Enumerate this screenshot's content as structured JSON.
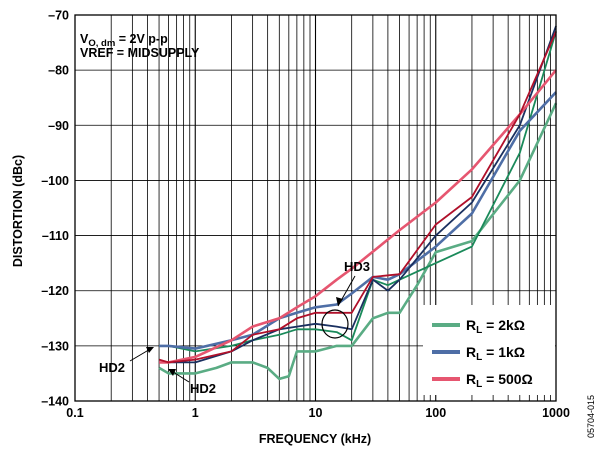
{
  "chart_data": {
    "type": "line",
    "xlabel": "FREQUENCY (kHz)",
    "ylabel": "DISTORTION (dBc)",
    "xscale": "log",
    "xlim": [
      0.1,
      1000
    ],
    "ylim": [
      -140,
      -70
    ],
    "x_ticks": [
      "0.1",
      "1",
      "10",
      "100",
      "1000"
    ],
    "y_ticks": [
      "–70",
      "–80",
      "–90",
      "–100",
      "–110",
      "–120",
      "–130",
      "–140"
    ],
    "grid": true,
    "conditions": {
      "line1_main": "V",
      "line1_sub": "O, dm",
      "line1_rest": " = 2V p-p",
      "line2": "VREF = MIDSUPPLY"
    },
    "annotations": [
      "HD3",
      "HD2",
      "HD2"
    ],
    "legend": {
      "placement": "bottom-right",
      "items": [
        {
          "prefix": "R",
          "sub": "L",
          "text": " = 2kΩ",
          "color": "#5aac84"
        },
        {
          "prefix": "R",
          "sub": "L",
          "text": " = 1kΩ",
          "color": "#4e6ea6"
        },
        {
          "prefix": "R",
          "sub": "L",
          "text": " = 500Ω",
          "color": "#e65670"
        }
      ]
    },
    "figure_code": "05704-015",
    "series": [
      {
        "name": "RL = 2kΩ HD2",
        "color": "#5aac84",
        "x": [
          0.5,
          0.6,
          1,
          1.5,
          2,
          3,
          4,
          5,
          6,
          7,
          10,
          15,
          20,
          30,
          40,
          50,
          70,
          100,
          200,
          500,
          1000
        ],
        "y": [
          -134,
          -135,
          -135,
          -134,
          -133,
          -133,
          -134,
          -136,
          -135.5,
          -131,
          -131,
          -130,
          -130,
          -125,
          -124,
          -124,
          -119,
          -113,
          -111,
          -100,
          -86
        ]
      },
      {
        "name": "RL = 2kΩ HD3",
        "color": "#1a8a5a",
        "x": [
          0.5,
          0.6,
          1,
          2,
          3,
          5,
          7,
          10,
          15,
          20,
          30,
          40,
          50,
          100,
          200,
          500,
          1000
        ],
        "y": [
          -130,
          -130,
          -131,
          -130,
          -129,
          -128,
          -127,
          -127,
          -127.5,
          -129,
          -118,
          -119,
          -118,
          -115,
          -112,
          -95,
          -73
        ]
      },
      {
        "name": "RL = 1kΩ HD2",
        "color": "#4e6ea6",
        "x": [
          0.5,
          0.6,
          1,
          2,
          3,
          5,
          7,
          10,
          15,
          20,
          30,
          40,
          50,
          100,
          200,
          500,
          1000
        ],
        "y": [
          -130,
          -130,
          -130.5,
          -129,
          -128,
          -125,
          -124,
          -123,
          -122.5,
          -120.5,
          -117.5,
          -118,
          -117,
          -112,
          -106,
          -91,
          -84
        ]
      },
      {
        "name": "RL = 1kΩ HD3",
        "color": "#1a3060",
        "x": [
          0.5,
          0.6,
          1,
          2,
          3,
          5,
          7,
          10,
          15,
          20,
          30,
          40,
          50,
          100,
          200,
          500,
          1000
        ],
        "y": [
          -133,
          -133,
          -133,
          -131,
          -129,
          -127,
          -126.5,
          -126,
          -126.5,
          -127,
          -118,
          -120,
          -118,
          -110,
          -104,
          -90,
          -72
        ]
      },
      {
        "name": "RL = 500Ω HD2",
        "color": "#e65670",
        "x": [
          0.5,
          0.6,
          1,
          2,
          3,
          5,
          7,
          10,
          15,
          20,
          50,
          100,
          200,
          500,
          1000
        ],
        "y": [
          -133,
          -133,
          -132,
          -129,
          -126.5,
          -125,
          -123,
          -121,
          -118,
          -116,
          -109,
          -104,
          -98,
          -88,
          -80
        ]
      },
      {
        "name": "RL = 500Ω HD3",
        "color": "#b0102a",
        "x": [
          0.5,
          0.6,
          1,
          2,
          3,
          5,
          7,
          10,
          15,
          20,
          30,
          50,
          100,
          200,
          500,
          1000
        ],
        "y": [
          -132.5,
          -133,
          -132.5,
          -131,
          -128,
          -127,
          -125,
          -124,
          -124,
          -124,
          -117.5,
          -117,
          -108,
          -103,
          -88,
          -73
        ]
      }
    ]
  }
}
